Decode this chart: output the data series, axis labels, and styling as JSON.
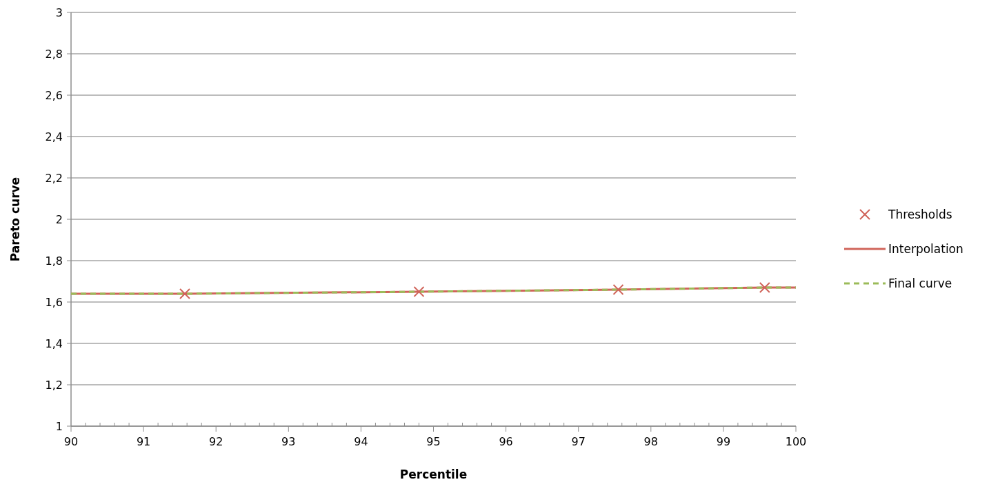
{
  "chart_data": {
    "type": "line",
    "xlabel": "Percentile",
    "ylabel": "Pareto curve",
    "xlim": [
      90,
      100
    ],
    "ylim": [
      1,
      3
    ],
    "xticks": [
      90,
      {
        "value": 90.2,
        "label": null
      },
      {
        "value": 90.4,
        "label": null
      },
      {
        "value": 90.6,
        "label": null
      },
      {
        "value": 90.8,
        "label": null
      },
      91,
      {
        "value": 91.2,
        "label": null
      },
      {
        "value": 91.4,
        "label": null
      },
      {
        "value": 91.6,
        "label": null
      },
      {
        "value": 91.8,
        "label": null
      },
      92,
      {
        "value": 92.2,
        "label": null
      },
      {
        "value": 92.4,
        "label": null
      },
      {
        "value": 92.6,
        "label": null
      },
      {
        "value": 92.8,
        "label": null
      },
      93,
      {
        "value": 93.2,
        "label": null
      },
      {
        "value": 93.4,
        "label": null
      },
      {
        "value": 93.6,
        "label": null
      },
      {
        "value": 93.8,
        "label": null
      },
      94,
      {
        "value": 94.2,
        "label": null
      },
      {
        "value": 94.4,
        "label": null
      },
      {
        "value": 94.6,
        "label": null
      },
      {
        "value": 94.8,
        "label": null
      },
      95,
      {
        "value": 95.2,
        "label": null
      },
      {
        "value": 95.4,
        "label": null
      },
      {
        "value": 95.6,
        "label": null
      },
      {
        "value": 95.8,
        "label": null
      },
      96,
      {
        "value": 96.2,
        "label": null
      },
      {
        "value": 96.4,
        "label": null
      },
      {
        "value": 96.6,
        "label": null
      },
      {
        "value": 96.8,
        "label": null
      },
      97,
      {
        "value": 97.2,
        "label": null
      },
      {
        "value": 97.4,
        "label": null
      },
      {
        "value": 97.6,
        "label": null
      },
      {
        "value": 97.8,
        "label": null
      },
      98,
      {
        "value": 98.2,
        "label": null
      },
      {
        "value": 98.4,
        "label": null
      },
      {
        "value": 98.6,
        "label": null
      },
      {
        "value": 98.8,
        "label": null
      },
      99,
      {
        "value": 99.2,
        "label": null
      },
      {
        "value": 99.4,
        "label": null
      },
      {
        "value": 99.6,
        "label": null
      },
      {
        "value": 99.8,
        "label": null
      },
      100
    ],
    "yticks": [
      1,
      {
        "value": 1.2,
        "label": "1,2"
      },
      {
        "value": 1.4,
        "label": "1,4"
      },
      {
        "value": 1.6,
        "label": "1,6"
      },
      {
        "value": 1.8,
        "label": "1,8"
      },
      2,
      {
        "value": 2.2,
        "label": "2,2"
      },
      {
        "value": 2.4,
        "label": "2,4"
      },
      {
        "value": 2.6,
        "label": "2,6"
      },
      {
        "value": 2.8,
        "label": "2,8"
      },
      3
    ],
    "grid": "y",
    "legend": "right",
    "series": [
      {
        "name": "Thresholds",
        "type": "scatter",
        "marker": "cross",
        "color": "#d0645a",
        "x": [
          91.57,
          94.8,
          97.55,
          99.57
        ],
        "values": [
          1.64,
          1.65,
          1.66,
          1.67
        ]
      },
      {
        "name": "Interpolation",
        "line_style": "solid",
        "color": "#d0645a",
        "x": [
          90,
          91.57,
          94.8,
          97.55,
          99.57,
          100
        ],
        "values": [
          1.64,
          1.64,
          1.65,
          1.66,
          1.67,
          1.67
        ]
      },
      {
        "name": "Final curve",
        "line_style": "dashed",
        "color": "#9bbb59",
        "x": [
          90,
          91.57,
          94.8,
          97.55,
          99.57,
          100
        ],
        "values": [
          1.64,
          1.64,
          1.65,
          1.66,
          1.67,
          1.67
        ]
      }
    ]
  }
}
